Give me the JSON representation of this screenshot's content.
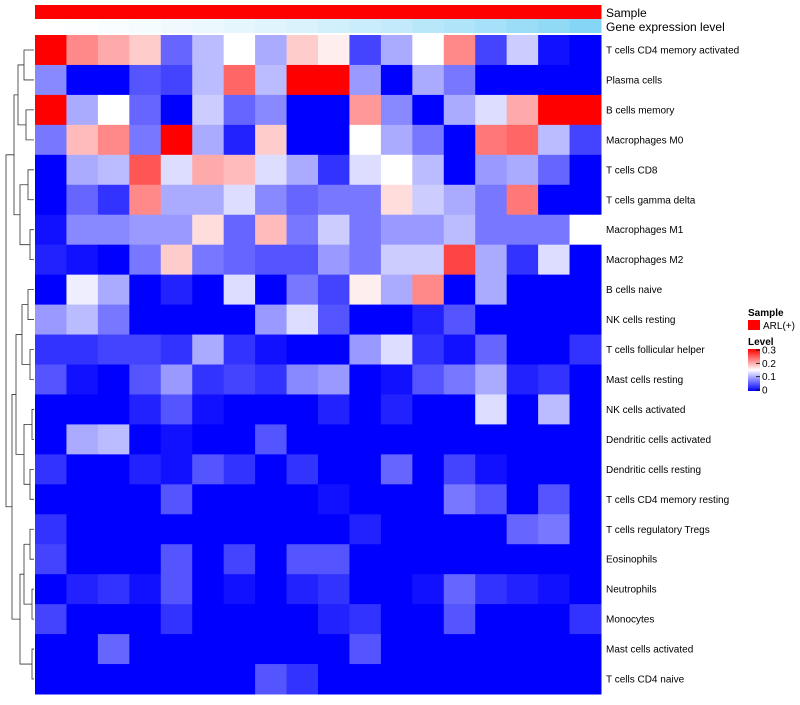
{
  "chart_data": {
    "type": "heatmap",
    "annotation_tracks": [
      {
        "name": "Sample",
        "values": [
          "ARL(+)",
          "ARL(+)",
          "ARL(+)",
          "ARL(+)",
          "ARL(+)",
          "ARL(+)",
          "ARL(+)",
          "ARL(+)",
          "ARL(+)",
          "ARL(+)",
          "ARL(+)",
          "ARL(+)",
          "ARL(+)",
          "ARL(+)",
          "ARL(+)",
          "ARL(+)",
          "ARL(+)",
          "ARL(+)"
        ]
      },
      {
        "name": "Gene expression level",
        "values": [
          0.0,
          0.02,
          0.05,
          0.08,
          0.12,
          0.16,
          0.2,
          0.25,
          0.3,
          0.36,
          0.42,
          0.48,
          0.55,
          0.62,
          0.7,
          0.78,
          0.86,
          0.95
        ]
      }
    ],
    "row_labels": [
      "T cells CD4 memory activated",
      "Plasma cells",
      "B cells memory",
      "Macrophages M0",
      "T cells CD8",
      "T cells gamma delta",
      "Macrophages M1",
      "Macrophages M2",
      "B cells naive",
      "NK cells resting",
      "T cells follicular helper",
      "Mast cells resting",
      "NK cells activated",
      "Dendritic cells activated",
      "Dendritic cells resting",
      "T cells CD4 memory resting",
      "T cells regulatory  Tregs",
      "Eosinophils",
      "Neutrophils",
      "Monocytes",
      "Mast cells activated",
      "T cells CD4 naive"
    ],
    "values": [
      [
        0.3,
        0.22,
        0.2,
        0.18,
        0.06,
        0.11,
        0.15,
        0.1,
        0.18,
        0.16,
        0.04,
        0.1,
        0.15,
        0.22,
        0.04,
        0.12,
        0.01,
        0.0
      ],
      [
        0.08,
        0.0,
        0.0,
        0.05,
        0.04,
        0.11,
        0.24,
        0.11,
        0.3,
        0.3,
        0.09,
        0.0,
        0.1,
        0.07,
        0.0,
        0.0,
        0.0,
        0.0
      ],
      [
        0.3,
        0.1,
        0.15,
        0.06,
        0.0,
        0.12,
        0.06,
        0.08,
        0.0,
        0.0,
        0.21,
        0.08,
        0.0,
        0.1,
        0.13,
        0.2,
        0.3,
        0.3
      ],
      [
        0.07,
        0.19,
        0.22,
        0.07,
        0.3,
        0.1,
        0.02,
        0.18,
        0.0,
        0.0,
        0.15,
        0.1,
        0.07,
        0.0,
        0.23,
        0.24,
        0.11,
        0.04
      ],
      [
        0.0,
        0.1,
        0.11,
        0.25,
        0.13,
        0.2,
        0.19,
        0.13,
        0.1,
        0.03,
        0.13,
        0.15,
        0.11,
        0.0,
        0.09,
        0.1,
        0.06,
        0.0
      ],
      [
        0.0,
        0.06,
        0.03,
        0.22,
        0.1,
        0.1,
        0.13,
        0.08,
        0.06,
        0.07,
        0.07,
        0.17,
        0.12,
        0.1,
        0.07,
        0.23,
        0.0,
        0.0
      ],
      [
        0.01,
        0.08,
        0.08,
        0.09,
        0.09,
        0.17,
        0.06,
        0.19,
        0.07,
        0.12,
        0.07,
        0.09,
        0.09,
        0.11,
        0.07,
        0.07,
        0.07,
        0.15
      ],
      [
        0.02,
        0.01,
        0.0,
        0.07,
        0.18,
        0.07,
        0.06,
        0.05,
        0.05,
        0.09,
        0.07,
        0.12,
        0.12,
        0.26,
        0.1,
        0.03,
        0.13,
        0.0
      ],
      [
        0.0,
        0.14,
        0.1,
        0.0,
        0.02,
        0.0,
        0.13,
        0.0,
        0.07,
        0.04,
        0.16,
        0.1,
        0.22,
        0.0,
        0.1,
        0.0,
        0.0,
        0.0
      ],
      [
        0.09,
        0.11,
        0.07,
        0.0,
        0.0,
        0.0,
        0.0,
        0.09,
        0.13,
        0.05,
        0.0,
        0.0,
        0.02,
        0.05,
        0.0,
        0.0,
        0.0,
        0.0
      ],
      [
        0.03,
        0.03,
        0.04,
        0.04,
        0.03,
        0.1,
        0.03,
        0.01,
        0.0,
        0.0,
        0.09,
        0.13,
        0.03,
        0.01,
        0.06,
        0.0,
        0.0,
        0.03
      ],
      [
        0.05,
        0.01,
        0.0,
        0.05,
        0.09,
        0.03,
        0.04,
        0.03,
        0.08,
        0.09,
        0.0,
        0.01,
        0.05,
        0.07,
        0.1,
        0.02,
        0.03,
        0.0
      ],
      [
        0.0,
        0.0,
        0.0,
        0.02,
        0.05,
        0.01,
        0.0,
        0.0,
        0.0,
        0.02,
        0.0,
        0.02,
        0.0,
        0.0,
        0.13,
        0.0,
        0.11,
        0.0
      ],
      [
        0.0,
        0.1,
        0.11,
        0.0,
        0.01,
        0.0,
        0.0,
        0.05,
        0.0,
        0.0,
        0.0,
        0.0,
        0.0,
        0.0,
        0.0,
        0.0,
        0.0,
        0.0
      ],
      [
        0.03,
        0.0,
        0.0,
        0.02,
        0.01,
        0.05,
        0.03,
        0.0,
        0.03,
        0.0,
        0.0,
        0.06,
        0.0,
        0.04,
        0.01,
        0.0,
        0.0,
        0.0
      ],
      [
        0.0,
        0.0,
        0.0,
        0.0,
        0.05,
        0.0,
        0.0,
        0.0,
        0.0,
        0.01,
        0.0,
        0.0,
        0.0,
        0.07,
        0.05,
        0.0,
        0.05,
        0.0
      ],
      [
        0.03,
        0.0,
        0.0,
        0.0,
        0.0,
        0.0,
        0.0,
        0.0,
        0.0,
        0.0,
        0.02,
        0.0,
        0.0,
        0.0,
        0.0,
        0.06,
        0.07,
        0.0
      ],
      [
        0.04,
        0.0,
        0.0,
        0.0,
        0.05,
        0.0,
        0.04,
        0.0,
        0.05,
        0.05,
        0.0,
        0.0,
        0.0,
        0.0,
        0.0,
        0.0,
        0.0,
        0.0
      ],
      [
        0.0,
        0.02,
        0.03,
        0.01,
        0.05,
        0.0,
        0.01,
        0.0,
        0.02,
        0.03,
        0.0,
        0.0,
        0.01,
        0.06,
        0.03,
        0.02,
        0.01,
        0.0
      ],
      [
        0.04,
        0.0,
        0.0,
        0.0,
        0.03,
        0.0,
        0.0,
        0.0,
        0.0,
        0.02,
        0.03,
        0.0,
        0.0,
        0.05,
        0.0,
        0.0,
        0.0,
        0.03
      ],
      [
        0.0,
        0.0,
        0.06,
        0.0,
        0.0,
        0.0,
        0.0,
        0.0,
        0.0,
        0.0,
        0.05,
        0.0,
        0.0,
        0.0,
        0.0,
        0.0,
        0.0,
        0.0
      ],
      [
        0.0,
        0.0,
        0.0,
        0.0,
        0.0,
        0.0,
        0.0,
        0.05,
        0.03,
        0.0,
        0.0,
        0.0,
        0.0,
        0.0,
        0.0,
        0.0,
        0.0,
        0.0
      ]
    ],
    "color_scale": {
      "min": 0,
      "mid": 0.15,
      "max": 0.3,
      "low": "#0000ff",
      "mid_color": "#ffffff",
      "high": "#ff0000"
    },
    "dendrogram": "rows (left side)",
    "legend": {
      "sample_title": "Sample",
      "sample_entry": "ARL(+)",
      "sample_color": "#ff0000",
      "level_title": "Level",
      "level_ticks": [
        "0.3",
        "0.2",
        "0.1",
        "0"
      ]
    },
    "annotation_colors": {
      "gene_low": "#ffffff",
      "gene_high": "#7fd4f5"
    },
    "legend_placement": "right"
  }
}
